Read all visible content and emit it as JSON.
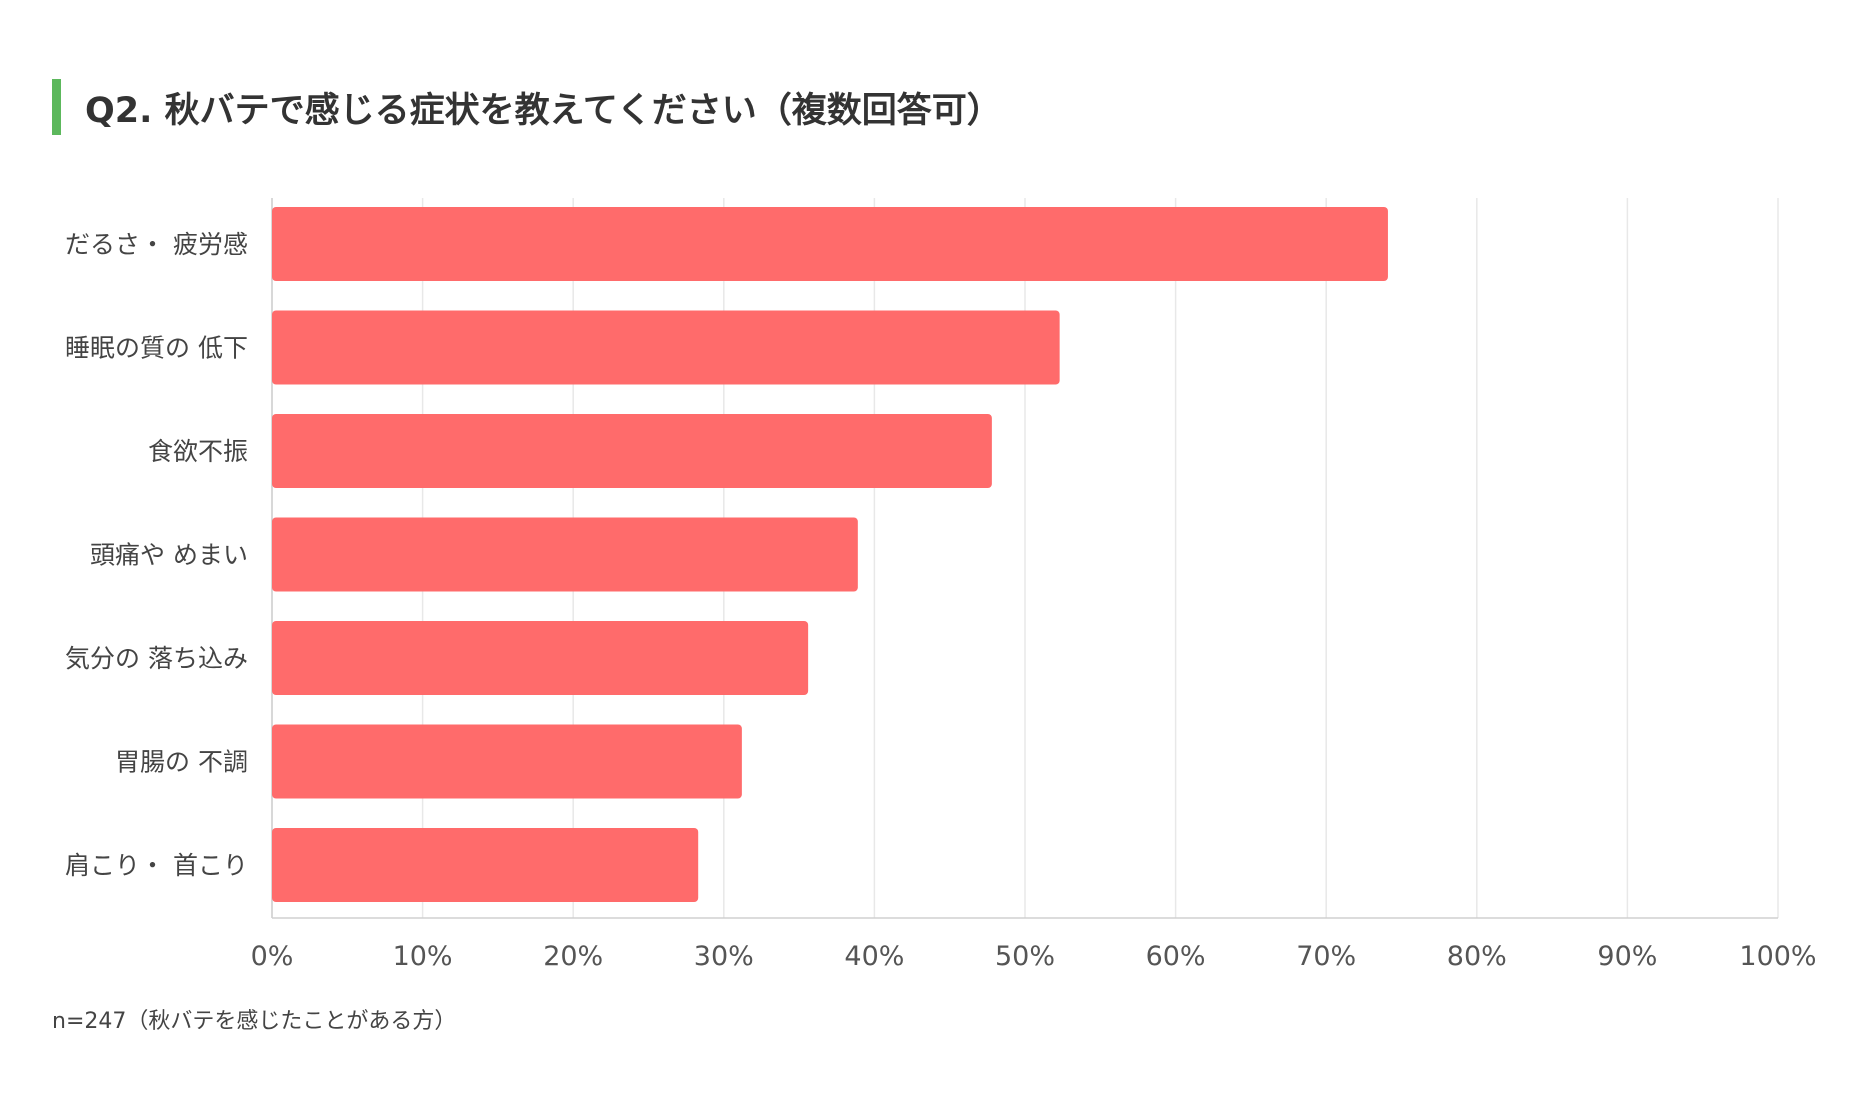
{
  "title": "Q2. 秋バテで感じる症状を教えてください（複数回答可）",
  "accent_color": "#5cb85c",
  "bar_color": "#ff6b6b",
  "grid_color": "#e8e8e8",
  "note": "n=247（秋バテを感じたことがある方）",
  "chart_data": {
    "type": "bar",
    "orientation": "horizontal",
    "categories": [
      "だるさ・ 疲労感",
      "睡眠の質の 低下",
      "食欲不振",
      "頭痛や めまい",
      "気分の 落ち込み",
      "胃腸の 不調",
      "肩こり・ 首こり"
    ],
    "values": [
      74.1,
      52.3,
      47.8,
      38.9,
      35.6,
      31.2,
      28.3
    ],
    "unit": "%",
    "xlim": [
      0,
      100
    ],
    "ticks": [
      "0%",
      "10%",
      "20%",
      "30%",
      "40%",
      "50%",
      "60%",
      "70%",
      "80%",
      "90%",
      "100%"
    ],
    "grid": true,
    "legend": "none"
  }
}
